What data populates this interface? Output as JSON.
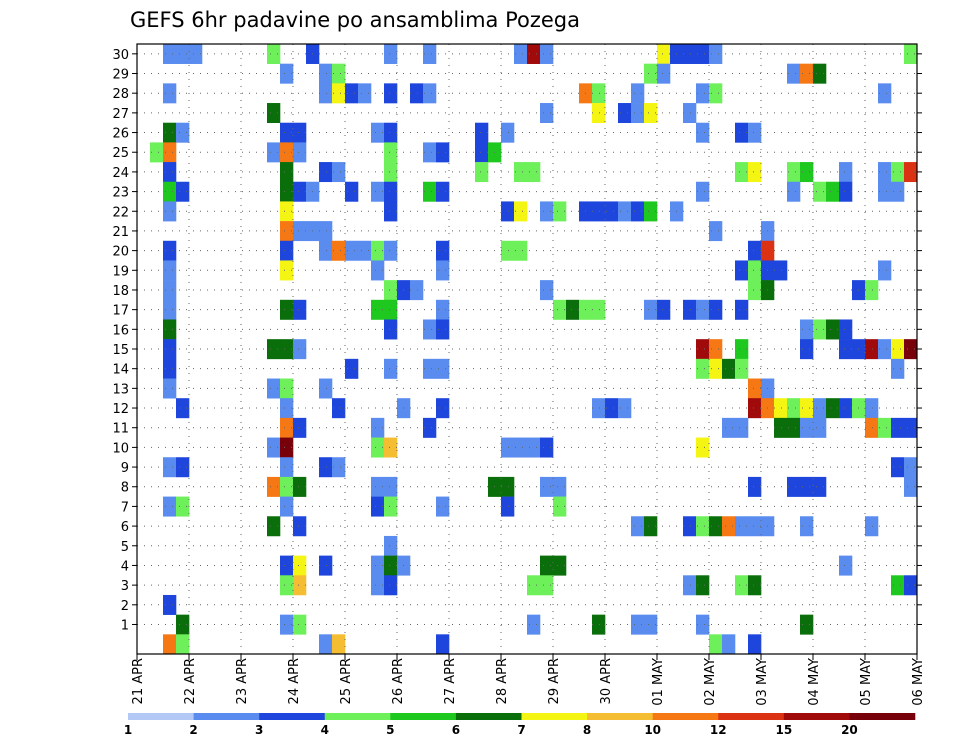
{
  "chart_data": {
    "type": "heatmap",
    "title": "GEFS 6hr padavine po ansamblima Pozega",
    "y_ticks": [
      "1",
      "2",
      "3",
      "4",
      "5",
      "6",
      "7",
      "8",
      "9",
      "10",
      "11",
      "12",
      "13",
      "14",
      "15",
      "16",
      "17",
      "18",
      "19",
      "20",
      "21",
      "22",
      "23",
      "24",
      "25",
      "26",
      "27",
      "28",
      "29",
      "30"
    ],
    "x_ticks": [
      "21 APR",
      "22 APR",
      "23 APR",
      "24 APR",
      "25 APR",
      "26 APR",
      "27 APR",
      "28 APR",
      "29 APR",
      "30 APR",
      "01 MAY",
      "02 MAY",
      "03 MAY",
      "04 MAY",
      "05 MAY",
      "06 MAY"
    ],
    "x_range_steps": [
      0,
      60
    ],
    "steps_per_day": 4,
    "grid": "dotted",
    "legend": {
      "placement": "bottom",
      "labels": [
        "1",
        "2",
        "3",
        "4",
        "5",
        "6",
        "7",
        "8",
        "10",
        "12",
        "15",
        "20"
      ],
      "colors": [
        "#b4c8f5",
        "#5a8cf0",
        "#1e46dc",
        "#6ef05a",
        "#1ec81e",
        "#0a6e0a",
        "#f5f514",
        "#f5be32",
        "#f57814",
        "#dc3214",
        "#a00a0a",
        "#78000a"
      ]
    },
    "cells": [
      [
        30,
        2,
        1
      ],
      [
        30,
        3,
        1
      ],
      [
        30,
        4,
        1
      ],
      [
        30,
        10,
        3
      ],
      [
        30,
        13,
        2
      ],
      [
        30,
        19,
        1
      ],
      [
        30,
        22,
        1
      ],
      [
        30,
        29,
        1
      ],
      [
        30,
        30,
        10
      ],
      [
        30,
        31,
        1
      ],
      [
        30,
        40,
        6
      ],
      [
        30,
        41,
        2
      ],
      [
        30,
        42,
        2
      ],
      [
        30,
        43,
        2
      ],
      [
        30,
        44,
        1
      ],
      [
        30,
        59,
        3
      ],
      [
        29,
        11,
        1
      ],
      [
        29,
        14,
        1
      ],
      [
        29,
        15,
        3
      ],
      [
        29,
        39,
        3
      ],
      [
        29,
        40,
        1
      ],
      [
        29,
        50,
        1
      ],
      [
        29,
        51,
        8
      ],
      [
        29,
        52,
        5
      ],
      [
        28,
        2,
        1
      ],
      [
        28,
        14,
        1
      ],
      [
        28,
        15,
        6
      ],
      [
        28,
        16,
        2
      ],
      [
        28,
        17,
        1
      ],
      [
        28,
        19,
        2
      ],
      [
        28,
        21,
        2
      ],
      [
        28,
        22,
        1
      ],
      [
        28,
        34,
        8
      ],
      [
        28,
        35,
        3
      ],
      [
        28,
        38,
        1
      ],
      [
        28,
        43,
        1
      ],
      [
        28,
        44,
        3
      ],
      [
        28,
        57,
        1
      ],
      [
        27,
        10,
        5
      ],
      [
        27,
        31,
        1
      ],
      [
        27,
        35,
        6
      ],
      [
        27,
        37,
        2
      ],
      [
        27,
        38,
        1
      ],
      [
        27,
        39,
        6
      ],
      [
        27,
        42,
        1
      ],
      [
        26,
        2,
        5
      ],
      [
        26,
        3,
        1
      ],
      [
        26,
        11,
        2
      ],
      [
        26,
        12,
        2
      ],
      [
        26,
        18,
        1
      ],
      [
        26,
        19,
        2
      ],
      [
        26,
        26,
        2
      ],
      [
        26,
        28,
        1
      ],
      [
        26,
        43,
        1
      ],
      [
        26,
        46,
        2
      ],
      [
        26,
        47,
        1
      ],
      [
        25,
        1,
        3
      ],
      [
        25,
        2,
        8
      ],
      [
        25,
        10,
        1
      ],
      [
        25,
        11,
        8
      ],
      [
        25,
        12,
        1
      ],
      [
        25,
        19,
        3
      ],
      [
        25,
        22,
        1
      ],
      [
        25,
        23,
        2
      ],
      [
        25,
        26,
        2
      ],
      [
        25,
        27,
        4
      ],
      [
        24,
        2,
        2
      ],
      [
        24,
        11,
        5
      ],
      [
        24,
        14,
        2
      ],
      [
        24,
        15,
        1
      ],
      [
        24,
        19,
        3
      ],
      [
        24,
        26,
        3
      ],
      [
        24,
        29,
        3
      ],
      [
        24,
        30,
        3
      ],
      [
        24,
        46,
        3
      ],
      [
        24,
        47,
        6
      ],
      [
        24,
        50,
        3
      ],
      [
        24,
        51,
        4
      ],
      [
        24,
        54,
        1
      ],
      [
        24,
        57,
        1
      ],
      [
        24,
        58,
        3
      ],
      [
        24,
        59,
        9
      ],
      [
        23,
        2,
        4
      ],
      [
        23,
        3,
        2
      ],
      [
        23,
        11,
        5
      ],
      [
        23,
        12,
        2
      ],
      [
        23,
        13,
        1
      ],
      [
        23,
        16,
        2
      ],
      [
        23,
        18,
        1
      ],
      [
        23,
        19,
        2
      ],
      [
        23,
        22,
        4
      ],
      [
        23,
        23,
        2
      ],
      [
        23,
        43,
        1
      ],
      [
        23,
        50,
        1
      ],
      [
        23,
        52,
        3
      ],
      [
        23,
        53,
        4
      ],
      [
        23,
        54,
        2
      ],
      [
        23,
        57,
        1
      ],
      [
        23,
        58,
        1
      ],
      [
        22,
        2,
        1
      ],
      [
        22,
        11,
        6
      ],
      [
        22,
        19,
        2
      ],
      [
        22,
        28,
        2
      ],
      [
        22,
        29,
        6
      ],
      [
        22,
        31,
        1
      ],
      [
        22,
        32,
        3
      ],
      [
        22,
        34,
        2
      ],
      [
        22,
        35,
        2
      ],
      [
        22,
        36,
        2
      ],
      [
        22,
        37,
        1
      ],
      [
        22,
        38,
        2
      ],
      [
        22,
        39,
        4
      ],
      [
        22,
        41,
        1
      ],
      [
        21,
        11,
        8
      ],
      [
        21,
        12,
        1
      ],
      [
        21,
        13,
        1
      ],
      [
        21,
        14,
        1
      ],
      [
        21,
        44,
        1
      ],
      [
        21,
        48,
        1
      ],
      [
        20,
        2,
        2
      ],
      [
        20,
        11,
        2
      ],
      [
        20,
        14,
        1
      ],
      [
        20,
        15,
        8
      ],
      [
        20,
        16,
        1
      ],
      [
        20,
        17,
        1
      ],
      [
        20,
        18,
        3
      ],
      [
        20,
        19,
        1
      ],
      [
        20,
        23,
        2
      ],
      [
        20,
        28,
        3
      ],
      [
        20,
        29,
        3
      ],
      [
        20,
        47,
        2
      ],
      [
        20,
        48,
        9
      ],
      [
        19,
        2,
        1
      ],
      [
        19,
        11,
        6
      ],
      [
        19,
        18,
        1
      ],
      [
        19,
        23,
        1
      ],
      [
        19,
        46,
        2
      ],
      [
        19,
        47,
        3
      ],
      [
        19,
        48,
        2
      ],
      [
        19,
        49,
        2
      ],
      [
        19,
        57,
        1
      ],
      [
        18,
        2,
        1
      ],
      [
        18,
        19,
        3
      ],
      [
        18,
        20,
        2
      ],
      [
        18,
        21,
        1
      ],
      [
        18,
        31,
        1
      ],
      [
        18,
        47,
        3
      ],
      [
        18,
        48,
        5
      ],
      [
        18,
        55,
        2
      ],
      [
        18,
        56,
        3
      ],
      [
        17,
        2,
        1
      ],
      [
        17,
        11,
        5
      ],
      [
        17,
        12,
        2
      ],
      [
        17,
        18,
        4
      ],
      [
        17,
        19,
        4
      ],
      [
        17,
        23,
        1
      ],
      [
        17,
        32,
        3
      ],
      [
        17,
        33,
        5
      ],
      [
        17,
        34,
        3
      ],
      [
        17,
        35,
        3
      ],
      [
        17,
        39,
        1
      ],
      [
        17,
        40,
        2
      ],
      [
        17,
        42,
        2
      ],
      [
        17,
        43,
        1
      ],
      [
        17,
        44,
        2
      ],
      [
        17,
        46,
        2
      ],
      [
        16,
        2,
        5
      ],
      [
        16,
        19,
        2
      ],
      [
        16,
        22,
        1
      ],
      [
        16,
        23,
        2
      ],
      [
        16,
        51,
        1
      ],
      [
        16,
        52,
        3
      ],
      [
        16,
        53,
        5
      ],
      [
        16,
        54,
        2
      ],
      [
        15,
        2,
        2
      ],
      [
        15,
        10,
        5
      ],
      [
        15,
        11,
        5
      ],
      [
        15,
        12,
        1
      ],
      [
        15,
        43,
        10
      ],
      [
        15,
        44,
        8
      ],
      [
        15,
        46,
        4
      ],
      [
        15,
        51,
        2
      ],
      [
        15,
        54,
        2
      ],
      [
        15,
        55,
        2
      ],
      [
        15,
        56,
        10
      ],
      [
        15,
        57,
        1
      ],
      [
        15,
        58,
        6
      ],
      [
        15,
        59,
        11
      ],
      [
        14,
        2,
        2
      ],
      [
        14,
        16,
        2
      ],
      [
        14,
        19,
        1
      ],
      [
        14,
        22,
        1
      ],
      [
        14,
        23,
        1
      ],
      [
        14,
        43,
        3
      ],
      [
        14,
        44,
        6
      ],
      [
        14,
        45,
        5
      ],
      [
        14,
        46,
        3
      ],
      [
        14,
        58,
        1
      ],
      [
        13,
        2,
        1
      ],
      [
        13,
        10,
        1
      ],
      [
        13,
        11,
        3
      ],
      [
        13,
        14,
        1
      ],
      [
        13,
        47,
        8
      ],
      [
        13,
        48,
        1
      ],
      [
        12,
        3,
        2
      ],
      [
        12,
        11,
        1
      ],
      [
        12,
        15,
        2
      ],
      [
        12,
        20,
        1
      ],
      [
        12,
        23,
        2
      ],
      [
        12,
        35,
        1
      ],
      [
        12,
        36,
        2
      ],
      [
        12,
        37,
        1
      ],
      [
        12,
        47,
        10
      ],
      [
        12,
        48,
        8
      ],
      [
        12,
        49,
        6
      ],
      [
        12,
        50,
        3
      ],
      [
        12,
        51,
        6
      ],
      [
        12,
        52,
        1
      ],
      [
        12,
        53,
        5
      ],
      [
        12,
        54,
        2
      ],
      [
        12,
        55,
        3
      ],
      [
        12,
        56,
        1
      ],
      [
        11,
        11,
        8
      ],
      [
        11,
        12,
        2
      ],
      [
        11,
        18,
        1
      ],
      [
        11,
        22,
        2
      ],
      [
        11,
        45,
        1
      ],
      [
        11,
        46,
        1
      ],
      [
        11,
        49,
        5
      ],
      [
        11,
        50,
        5
      ],
      [
        11,
        51,
        1
      ],
      [
        11,
        52,
        1
      ],
      [
        11,
        56,
        8
      ],
      [
        11,
        57,
        3
      ],
      [
        11,
        58,
        2
      ],
      [
        11,
        59,
        2
      ],
      [
        10,
        10,
        1
      ],
      [
        10,
        11,
        11
      ],
      [
        10,
        18,
        3
      ],
      [
        10,
        19,
        7
      ],
      [
        10,
        28,
        1
      ],
      [
        10,
        29,
        1
      ],
      [
        10,
        30,
        1
      ],
      [
        10,
        31,
        2
      ],
      [
        10,
        43,
        6
      ],
      [
        9,
        2,
        1
      ],
      [
        9,
        3,
        2
      ],
      [
        9,
        11,
        1
      ],
      [
        9,
        14,
        2
      ],
      [
        9,
        15,
        1
      ],
      [
        9,
        58,
        2
      ],
      [
        9,
        59,
        1
      ],
      [
        8,
        10,
        8
      ],
      [
        8,
        11,
        3
      ],
      [
        8,
        12,
        5
      ],
      [
        8,
        18,
        1
      ],
      [
        8,
        19,
        1
      ],
      [
        8,
        27,
        5
      ],
      [
        8,
        28,
        5
      ],
      [
        8,
        31,
        1
      ],
      [
        8,
        32,
        1
      ],
      [
        8,
        47,
        2
      ],
      [
        8,
        50,
        2
      ],
      [
        8,
        51,
        2
      ],
      [
        8,
        52,
        2
      ],
      [
        8,
        59,
        1
      ],
      [
        7,
        2,
        1
      ],
      [
        7,
        3,
        3
      ],
      [
        7,
        11,
        1
      ],
      [
        7,
        18,
        2
      ],
      [
        7,
        19,
        3
      ],
      [
        7,
        23,
        1
      ],
      [
        7,
        28,
        2
      ],
      [
        7,
        32,
        3
      ],
      [
        6,
        10,
        5
      ],
      [
        6,
        12,
        2
      ],
      [
        6,
        38,
        1
      ],
      [
        6,
        39,
        5
      ],
      [
        6,
        42,
        2
      ],
      [
        6,
        43,
        3
      ],
      [
        6,
        44,
        5
      ],
      [
        6,
        45,
        8
      ],
      [
        6,
        46,
        1
      ],
      [
        6,
        47,
        1
      ],
      [
        6,
        48,
        1
      ],
      [
        6,
        51,
        1
      ],
      [
        6,
        56,
        1
      ],
      [
        5,
        19,
        1
      ],
      [
        4,
        11,
        2
      ],
      [
        4,
        12,
        6
      ],
      [
        4,
        14,
        2
      ],
      [
        4,
        18,
        1
      ],
      [
        4,
        19,
        5
      ],
      [
        4,
        20,
        1
      ],
      [
        4,
        31,
        5
      ],
      [
        4,
        32,
        5
      ],
      [
        4,
        54,
        1
      ],
      [
        3,
        11,
        3
      ],
      [
        3,
        12,
        7
      ],
      [
        3,
        18,
        1
      ],
      [
        3,
        19,
        2
      ],
      [
        3,
        30,
        3
      ],
      [
        3,
        31,
        3
      ],
      [
        3,
        42,
        1
      ],
      [
        3,
        43,
        5
      ],
      [
        3,
        46,
        3
      ],
      [
        3,
        47,
        5
      ],
      [
        3,
        58,
        4
      ],
      [
        3,
        59,
        2
      ],
      [
        2,
        2,
        2
      ],
      [
        1,
        3,
        5
      ],
      [
        1,
        11,
        1
      ],
      [
        1,
        12,
        3
      ],
      [
        1,
        30,
        1
      ],
      [
        1,
        35,
        5
      ],
      [
        1,
        38,
        1
      ],
      [
        1,
        39,
        1
      ],
      [
        1,
        43,
        1
      ],
      [
        1,
        51,
        5
      ],
      [
        0,
        2,
        8
      ],
      [
        0,
        3,
        3
      ],
      [
        0,
        14,
        1
      ],
      [
        0,
        15,
        7
      ],
      [
        0,
        23,
        2
      ],
      [
        0,
        44,
        3
      ],
      [
        0,
        45,
        1
      ],
      [
        0,
        47,
        2
      ]
    ]
  }
}
